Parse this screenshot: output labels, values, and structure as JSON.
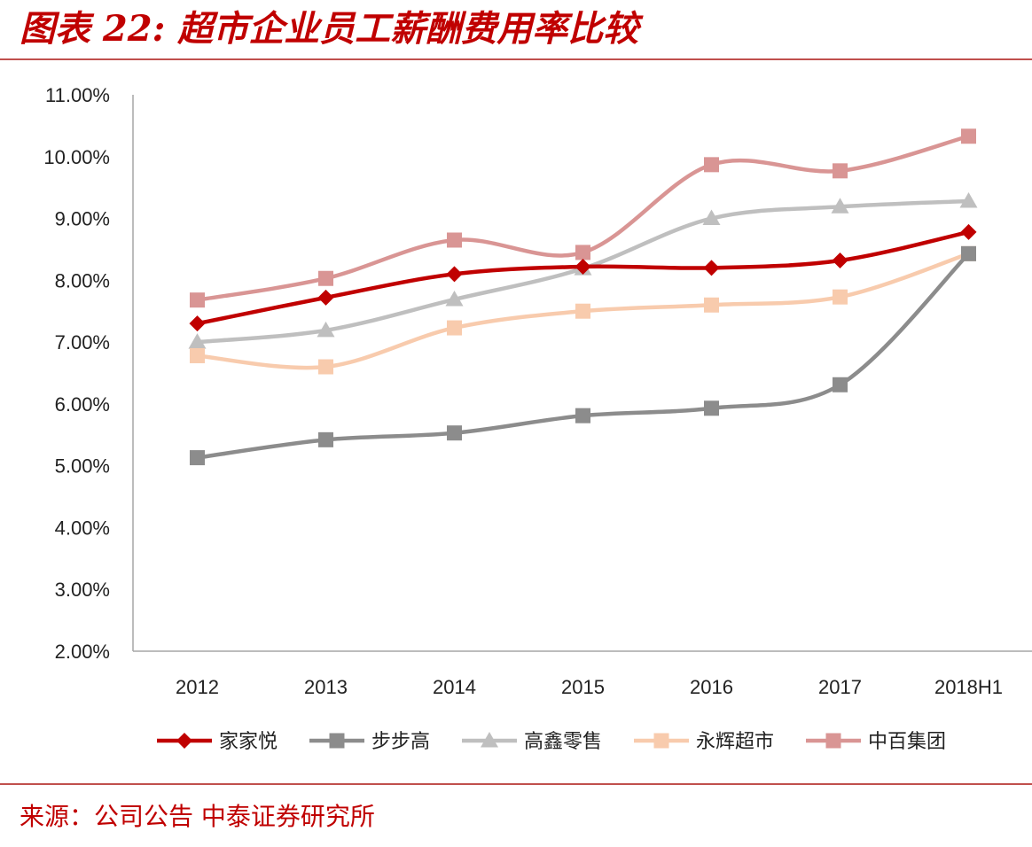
{
  "header": {
    "title": "图表 22: 超市企业员工薪酬费用率比较"
  },
  "footer": {
    "source": "来源：公司公告 中泰证券研究所"
  },
  "colors": {
    "accent": "#c00000",
    "rule": "#c0504d"
  },
  "chart_data": {
    "type": "line",
    "title": "",
    "xlabel": "",
    "ylabel": "",
    "categories": [
      "2012",
      "2013",
      "2014",
      "2015",
      "2016",
      "2017",
      "2018H1"
    ],
    "ylim": [
      0.02,
      0.11
    ],
    "ytick_labels": [
      "2.00%",
      "3.00%",
      "4.00%",
      "5.00%",
      "6.00%",
      "7.00%",
      "8.00%",
      "9.00%",
      "10.00%",
      "11.00%"
    ],
    "grid": false,
    "smooth": true,
    "legend_position": "bottom",
    "series": [
      {
        "name": "家家悦",
        "color": "#c00000",
        "marker": "diamond",
        "values": [
          0.073,
          0.0772,
          0.081,
          0.0822,
          0.082,
          0.0832,
          0.0878
        ]
      },
      {
        "name": "步步高",
        "color": "#8c8c8c",
        "marker": "square",
        "values": [
          0.0513,
          0.0542,
          0.0553,
          0.0581,
          0.0593,
          0.0631,
          0.0843
        ]
      },
      {
        "name": "高鑫零售",
        "color": "#bfbfbf",
        "marker": "triangle",
        "values": [
          0.07,
          0.0719,
          0.0769,
          0.0819,
          0.09,
          0.0919,
          0.0928
        ]
      },
      {
        "name": "永辉超市",
        "color": "#f8cbad",
        "marker": "square",
        "values": [
          0.0678,
          0.066,
          0.0723,
          0.075,
          0.076,
          0.0773,
          0.0843
        ]
      },
      {
        "name": "中百集团",
        "color": "#d99594",
        "marker": "square",
        "values": [
          0.0768,
          0.0803,
          0.0865,
          0.0845,
          0.0987,
          0.0977,
          0.1033
        ]
      }
    ]
  }
}
